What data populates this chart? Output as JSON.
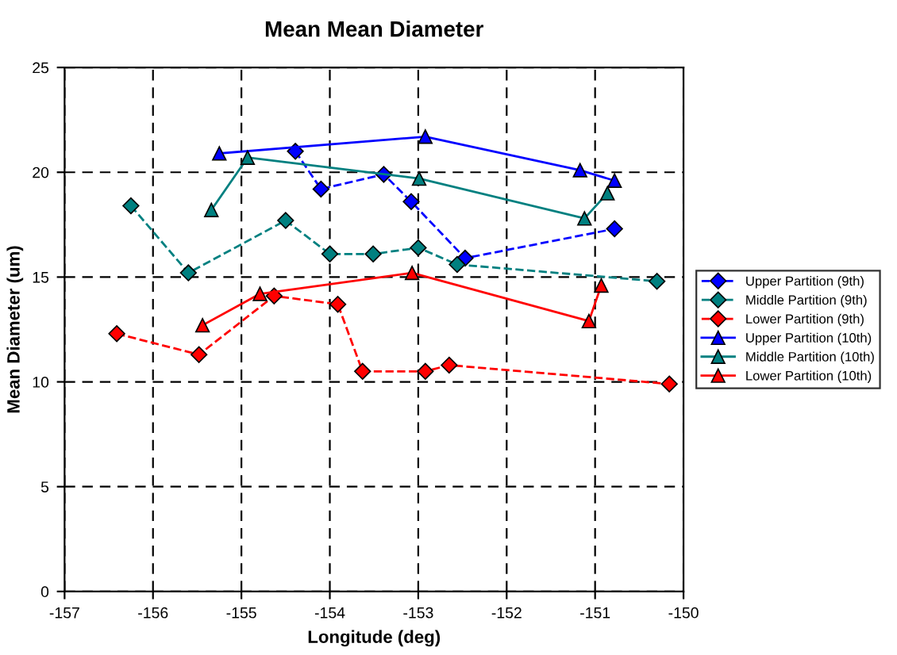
{
  "chart_data": {
    "type": "line",
    "title": "Mean Mean Diameter",
    "xlabel": "Longitude (deg)",
    "ylabel": "Mean Diameter (um)",
    "xlim": [
      -157,
      -150
    ],
    "xticks": [
      -157,
      -156,
      -155,
      -154,
      -153,
      -152,
      -151,
      -150
    ],
    "ylim": [
      0,
      25
    ],
    "yticks": [
      0,
      5,
      10,
      15,
      20,
      25
    ],
    "grid": true,
    "legend": "right",
    "series": [
      {
        "name": "Upper Partition (9th)",
        "color": "#0000ff",
        "marker": "diamond",
        "line_style": "dashed",
        "x": [
          -154.39,
          -154.1,
          -153.39,
          -153.08,
          -152.47,
          -150.78
        ],
        "values": [
          21.0,
          19.2,
          19.9,
          18.6,
          15.9,
          17.3
        ]
      },
      {
        "name": "Middle Partition (9th)",
        "color": "#008080",
        "marker": "diamond",
        "line_style": "dashed",
        "x": [
          -156.25,
          -155.6,
          -154.5,
          -154.0,
          -153.51,
          -153.0,
          -152.56,
          -150.3
        ],
        "values": [
          18.4,
          15.2,
          17.7,
          16.1,
          16.1,
          16.4,
          15.6,
          14.8
        ]
      },
      {
        "name": "Lower Partition (9th)",
        "color": "#ff0000",
        "marker": "diamond",
        "line_style": "dashed",
        "x": [
          -156.41,
          -155.48,
          -154.63,
          -153.91,
          -153.63,
          -152.92,
          -152.65,
          -150.16
        ],
        "values": [
          12.3,
          11.3,
          14.1,
          13.7,
          10.5,
          10.5,
          10.8,
          9.9
        ]
      },
      {
        "name": "Upper Partition (10th)",
        "color": "#0000ff",
        "marker": "triangle",
        "line_style": "solid",
        "x": [
          -155.25,
          -152.92,
          -151.17,
          -150.78
        ],
        "values": [
          20.9,
          21.7,
          20.1,
          19.6
        ]
      },
      {
        "name": "Middle Partition (10th)",
        "color": "#008080",
        "marker": "triangle",
        "line_style": "solid",
        "x": [
          -155.34,
          -154.93,
          -152.99,
          -151.12,
          -150.86
        ],
        "values": [
          18.2,
          20.7,
          19.7,
          17.8,
          19.0
        ]
      },
      {
        "name": "Lower Partition (10th)",
        "color": "#ff0000",
        "marker": "triangle",
        "line_style": "solid",
        "x": [
          -155.44,
          -154.79,
          -153.07,
          -151.07,
          -150.93
        ],
        "values": [
          12.7,
          14.2,
          15.2,
          12.9,
          14.6
        ]
      }
    ]
  }
}
